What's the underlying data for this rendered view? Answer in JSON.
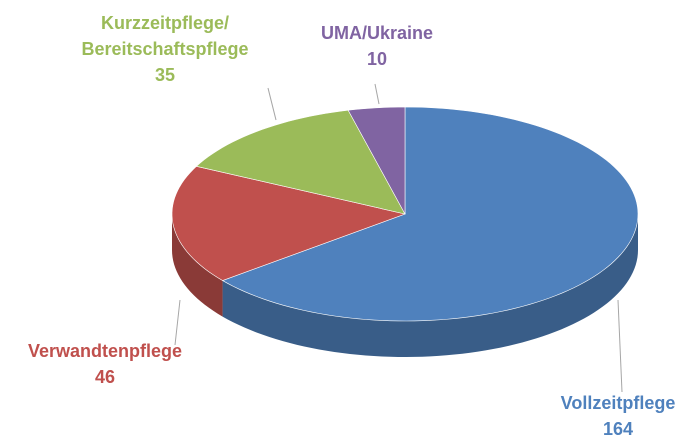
{
  "chart_data": {
    "type": "pie",
    "categories": [
      "Vollzeitpflege",
      "Verwandtenpflege",
      "Kurzzeitpflege/\nBereitschaftspflege",
      "UMA/Ukraine"
    ],
    "values": [
      164,
      46,
      35,
      10
    ],
    "colors": [
      "#4f81bd",
      "#c0504d",
      "#9bbb59",
      "#8064a2"
    ]
  }
}
